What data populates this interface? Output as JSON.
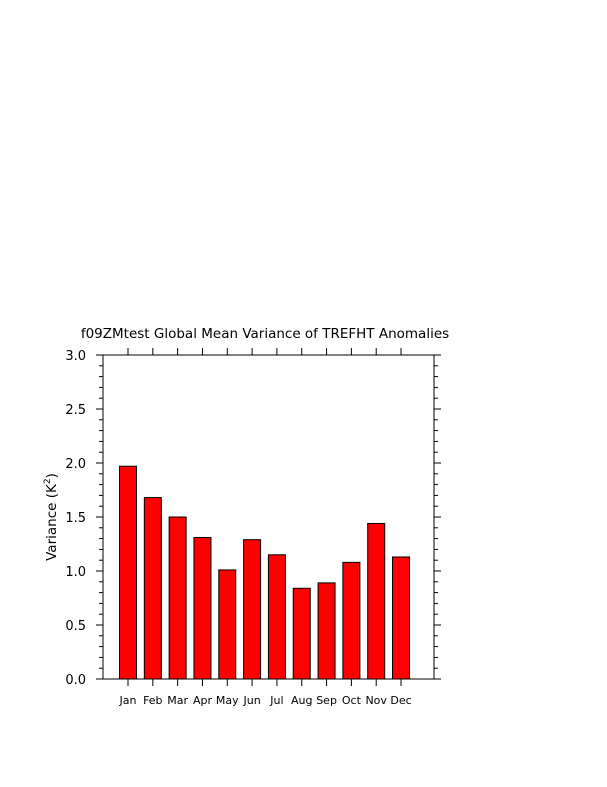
{
  "chart_data": {
    "type": "bar",
    "title": "f09ZMtest Global Mean Variance of TREFHT Anomalies",
    "ylabel": "Variance (K",
    "ylabel_sup": "2",
    "ylabel_close": ")",
    "xlabel": "",
    "categories": [
      "Jan",
      "Feb",
      "Mar",
      "Apr",
      "May",
      "Jun",
      "Jul",
      "Aug",
      "Sep",
      "Oct",
      "Nov",
      "Dec"
    ],
    "values": [
      1.97,
      1.68,
      1.5,
      1.31,
      1.01,
      1.29,
      1.15,
      0.84,
      0.89,
      1.08,
      1.44,
      1.13
    ],
    "ylim": [
      0.0,
      3.0
    ],
    "yticks": [
      "0.0",
      "0.5",
      "1.0",
      "1.5",
      "2.0",
      "2.5",
      "3.0"
    ],
    "bar_color": "#ff0000",
    "grid": false
  }
}
